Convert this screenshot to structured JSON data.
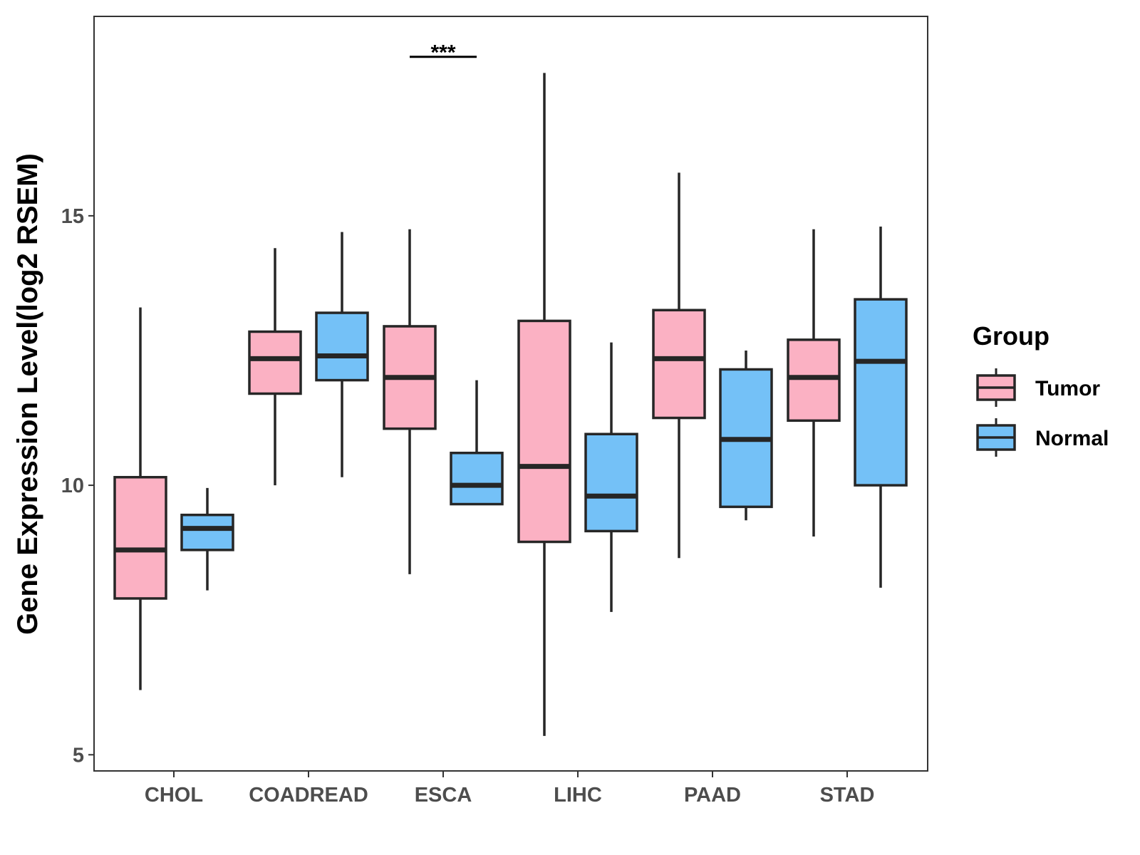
{
  "chart_data": {
    "type": "boxplot",
    "title": "",
    "xlabel": "",
    "ylabel": "Gene Expression Level(log2 RSEM)",
    "ylim": [
      4.7,
      18.7
    ],
    "yticks": [
      5,
      10,
      15
    ],
    "categories": [
      "CHOL",
      "COADREAD",
      "ESCA",
      "LIHC",
      "PAAD",
      "STAD"
    ],
    "legend": {
      "title": "Group",
      "position": "right"
    },
    "series": [
      {
        "name": "Tumor",
        "color": "#FBB1C3",
        "boxes": [
          {
            "category": "CHOL",
            "whisker_low": 6.2,
            "q1": 7.9,
            "median": 8.8,
            "q3": 10.15,
            "whisker_high": 13.3
          },
          {
            "category": "COADREAD",
            "whisker_low": 10.0,
            "q1": 11.7,
            "median": 12.35,
            "q3": 12.85,
            "whisker_high": 14.4
          },
          {
            "category": "ESCA",
            "whisker_low": 8.35,
            "q1": 11.05,
            "median": 12.0,
            "q3": 12.95,
            "whisker_high": 14.75
          },
          {
            "category": "LIHC",
            "whisker_low": 5.35,
            "q1": 8.95,
            "median": 10.35,
            "q3": 13.05,
            "whisker_high": 17.65
          },
          {
            "category": "PAAD",
            "whisker_low": 8.65,
            "q1": 11.25,
            "median": 12.35,
            "q3": 13.25,
            "whisker_high": 15.8
          },
          {
            "category": "STAD",
            "whisker_low": 9.05,
            "q1": 11.2,
            "median": 12.0,
            "q3": 12.7,
            "whisker_high": 14.75
          }
        ]
      },
      {
        "name": "Normal",
        "color": "#74C1F7",
        "boxes": [
          {
            "category": "CHOL",
            "whisker_low": 8.05,
            "q1": 8.8,
            "median": 9.2,
            "q3": 9.45,
            "whisker_high": 9.95
          },
          {
            "category": "COADREAD",
            "whisker_low": 10.15,
            "q1": 11.95,
            "median": 12.4,
            "q3": 13.2,
            "whisker_high": 14.7
          },
          {
            "category": "ESCA",
            "whisker_low": 9.65,
            "q1": 9.65,
            "median": 10.0,
            "q3": 10.6,
            "whisker_high": 11.95
          },
          {
            "category": "LIHC",
            "whisker_low": 7.65,
            "q1": 9.15,
            "median": 9.8,
            "q3": 10.95,
            "whisker_high": 12.65
          },
          {
            "category": "PAAD",
            "whisker_low": 9.35,
            "q1": 9.6,
            "median": 10.85,
            "q3": 12.15,
            "whisker_high": 12.5
          },
          {
            "category": "STAD",
            "whisker_low": 8.1,
            "q1": 10.0,
            "median": 12.3,
            "q3": 13.45,
            "whisker_high": 14.8
          }
        ]
      }
    ],
    "significance": [
      {
        "category": "ESCA",
        "label": "***",
        "y": 17.95
      }
    ]
  }
}
